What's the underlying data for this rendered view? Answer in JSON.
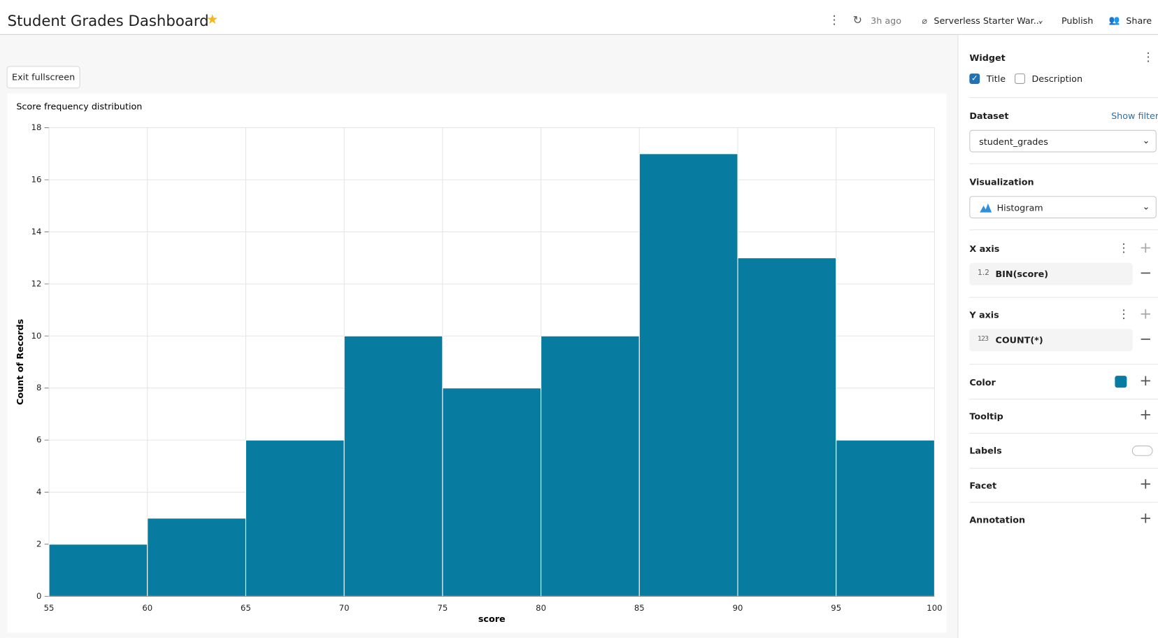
{
  "header": {
    "title": "Student Grades Dashboard",
    "refresh": "3h ago",
    "warehouse": "Serverless Starter War...",
    "publish": "Publish",
    "share": "Share"
  },
  "toolbar": {
    "exit": "Exit fullscreen"
  },
  "panel": {
    "widget": "Widget",
    "title_option": "Title",
    "description_option": "Description",
    "dataset_label": "Dataset",
    "show_filters": "Show filters",
    "dataset": "student_grades",
    "visualization_label": "Visualization",
    "visualization": "Histogram",
    "x_axis_label": "X axis",
    "x_axis_type": "1.2",
    "x_axis_field": "BIN(score)",
    "y_axis_label": "Y axis",
    "y_axis_type": "123",
    "y_axis_field": "COUNT(*)",
    "color": "Color",
    "tooltip": "Tooltip",
    "labels": "Labels",
    "facet": "Facet",
    "annotation": "Annotation"
  },
  "chart_data": {
    "type": "histogram",
    "title": "Score frequency distribution",
    "x_label": "score",
    "y_label": "Count of Records",
    "bins": [
      55,
      60,
      65,
      70,
      75,
      80,
      85,
      90,
      95,
      100
    ],
    "values": [
      2,
      3,
      6,
      10,
      8,
      10,
      17,
      13,
      6
    ],
    "color": "#087ca0",
    "xlim": [
      55,
      100
    ],
    "xticks": [
      55,
      60,
      65,
      70,
      75,
      80,
      85,
      90,
      95,
      100
    ],
    "ylim": [
      0,
      18
    ],
    "yticks": [
      0,
      2,
      4,
      6,
      8,
      10,
      12,
      14,
      16,
      18
    ],
    "grid": true
  }
}
